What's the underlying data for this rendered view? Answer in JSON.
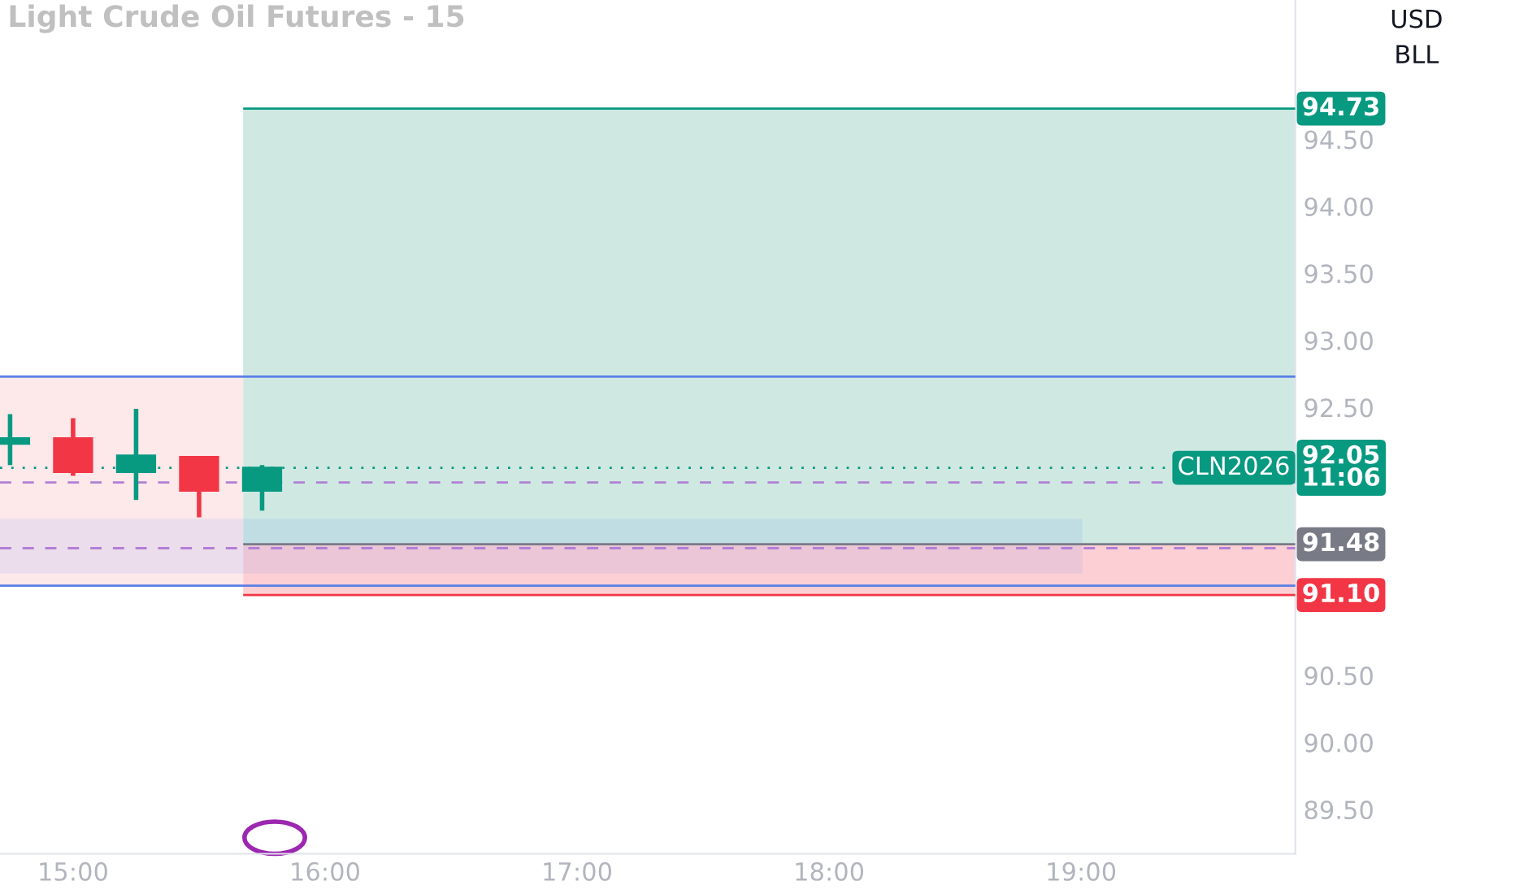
{
  "chart_data": {
    "type": "candlestick",
    "title": "Light Crude Oil Futures - 15",
    "x": [
      14.75,
      15.0,
      15.25,
      15.5,
      15.75
    ],
    "ohlc": [
      [
        92.23,
        92.45,
        92.07,
        92.27
      ],
      [
        92.27,
        92.42,
        91.99,
        92.02
      ],
      [
        92.02,
        92.49,
        91.81,
        92.14
      ],
      [
        92.13,
        92.13,
        91.68,
        91.88
      ],
      [
        91.88,
        92.07,
        91.73,
        92.05
      ]
    ],
    "colors": [
      "#089981",
      "#f23645",
      "#089981",
      "#f23645",
      "#089981"
    ],
    "xlim": [
      14.71,
      19.85
    ],
    "ylim": [
      89.17,
      95.54
    ],
    "xticks": [
      {
        "value": 15,
        "label": "15:00"
      },
      {
        "value": 16,
        "label": "16:00"
      },
      {
        "value": 17,
        "label": "17:00"
      },
      {
        "value": 18,
        "label": "18:00"
      },
      {
        "value": 19,
        "label": "19:00"
      }
    ],
    "yticks": [
      {
        "value": 89.5,
        "label": "89.50"
      },
      {
        "value": 90,
        "label": "90.00"
      },
      {
        "value": 90.5,
        "label": "90.50"
      },
      {
        "value": 92.5,
        "label": "92.50"
      },
      {
        "value": 93,
        "label": "93.00"
      },
      {
        "value": 93.5,
        "label": "93.50"
      },
      {
        "value": 94,
        "label": "94.00"
      },
      {
        "value": 94.5,
        "label": "94.50"
      }
    ],
    "bands": [
      {
        "axis": "y",
        "from": 91.17,
        "to": 92.73,
        "color": "#fde8ea"
      },
      {
        "axis": "y",
        "from": 91.48,
        "to": 94.73,
        "color": "#cfe9e2"
      },
      {
        "axis": "y",
        "from": 91.1,
        "to": 91.48,
        "color": "#fccfd4"
      },
      {
        "axis": "y",
        "from": 91.27,
        "to": 91.66,
        "color": "#2962ff"
      }
    ],
    "ref_lines": [
      {
        "axis": "y",
        "value": 92.73,
        "color": "#5b7fe8",
        "line_style": "solid"
      },
      {
        "axis": "y",
        "value": 91.17,
        "color": "#5b7fe8",
        "line_style": "solid"
      },
      {
        "axis": "y",
        "value": 91.94,
        "color": "#b27fd6",
        "line_style": "dashed"
      },
      {
        "axis": "y",
        "value": 91.45,
        "color": "#b27fd6",
        "line_style": "dashed"
      },
      {
        "axis": "y",
        "value": 92.05,
        "label": "92.05\n11:06",
        "color": "#089981",
        "line_style": "dotted"
      },
      {
        "axis": "y",
        "value": 94.73,
        "label": "94.73",
        "color": "#089981",
        "line_style": "solid"
      },
      {
        "axis": "y",
        "value": 91.48,
        "label": "91.48",
        "color": "#787b86",
        "line_style": "solid"
      },
      {
        "axis": "y",
        "value": 91.1,
        "label": "91.10",
        "color": "#f23645",
        "line_style": "solid"
      }
    ],
    "annotations": [
      {
        "text": "CLN2026",
        "x": 19.85,
        "y": 92.05
      },
      "USD\nBLL"
    ],
    "grid": false,
    "legend": false
  }
}
